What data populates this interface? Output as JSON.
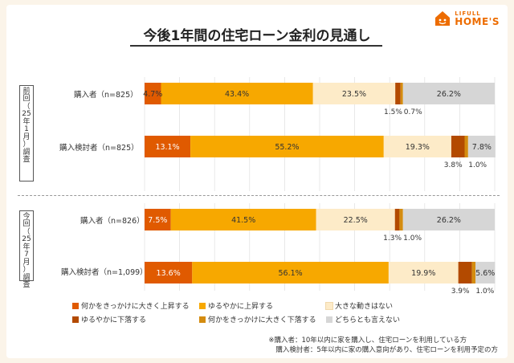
{
  "logo": {
    "line1": "LIFULL",
    "line2": "HOME'S"
  },
  "chart_data": {
    "type": "bar",
    "orientation": "horizontal-stacked-100",
    "title": "今後1年間の住宅ローン金利の見通し",
    "categories": [
      "何かをきっかけに大きく上昇する",
      "ゆるやかに上昇する",
      "大きな動きはない",
      "ゆるやかに下落する",
      "何かをきっかけに大きく下落する",
      "どちらとも言えない"
    ],
    "colors": [
      "#e05a00",
      "#f7a800",
      "#fdebc8",
      "#b34a00",
      "#d48c10",
      "#d6d6d6"
    ],
    "groups": [
      {
        "period": [
          "前",
          "回",
          "（",
          "25",
          "年",
          "1",
          "月",
          "）",
          "調",
          "査"
        ],
        "rows": [
          {
            "label": "購入者（n=825）",
            "values": [
              4.7,
              43.4,
              23.5,
              1.5,
              0.7,
              26.2
            ],
            "value_labels": [
              "4.7%",
              "43.4%",
              "23.5%",
              "1.5%",
              "0.7%",
              "26.2%"
            ]
          },
          {
            "label": "購入検討者（n=825）",
            "values": [
              13.1,
              55.2,
              19.3,
              3.8,
              1.0,
              7.8
            ],
            "value_labels": [
              "13.1%",
              "55.2%",
              "19.3%",
              "3.8%",
              "1.0%",
              "7.8%"
            ]
          }
        ]
      },
      {
        "period": [
          "今",
          "回",
          "（",
          "25",
          "年",
          "7",
          "月",
          "）",
          "調",
          "査"
        ],
        "rows": [
          {
            "label": "購入者（n=826）",
            "values": [
              7.5,
              41.5,
              22.5,
              1.3,
              1.0,
              26.2
            ],
            "value_labels": [
              "7.5%",
              "41.5%",
              "22.5%",
              "1.3%",
              "1.0%",
              "26.2%"
            ]
          },
          {
            "label": "購入検討者（n=1,099）",
            "values": [
              13.6,
              56.1,
              19.9,
              3.9,
              1.0,
              5.6
            ],
            "value_labels": [
              "13.6%",
              "56.1%",
              "19.9%",
              "3.9%",
              "1.0%",
              "5.6%"
            ]
          }
        ]
      }
    ],
    "xlim": [
      0,
      100
    ]
  },
  "notes": [
    "※購入者：10年以内に家を購入し、住宅ローンを利用している方",
    "購入検討者：5年以内に家の購入意向があり、住宅ローンを利用予定の方"
  ]
}
